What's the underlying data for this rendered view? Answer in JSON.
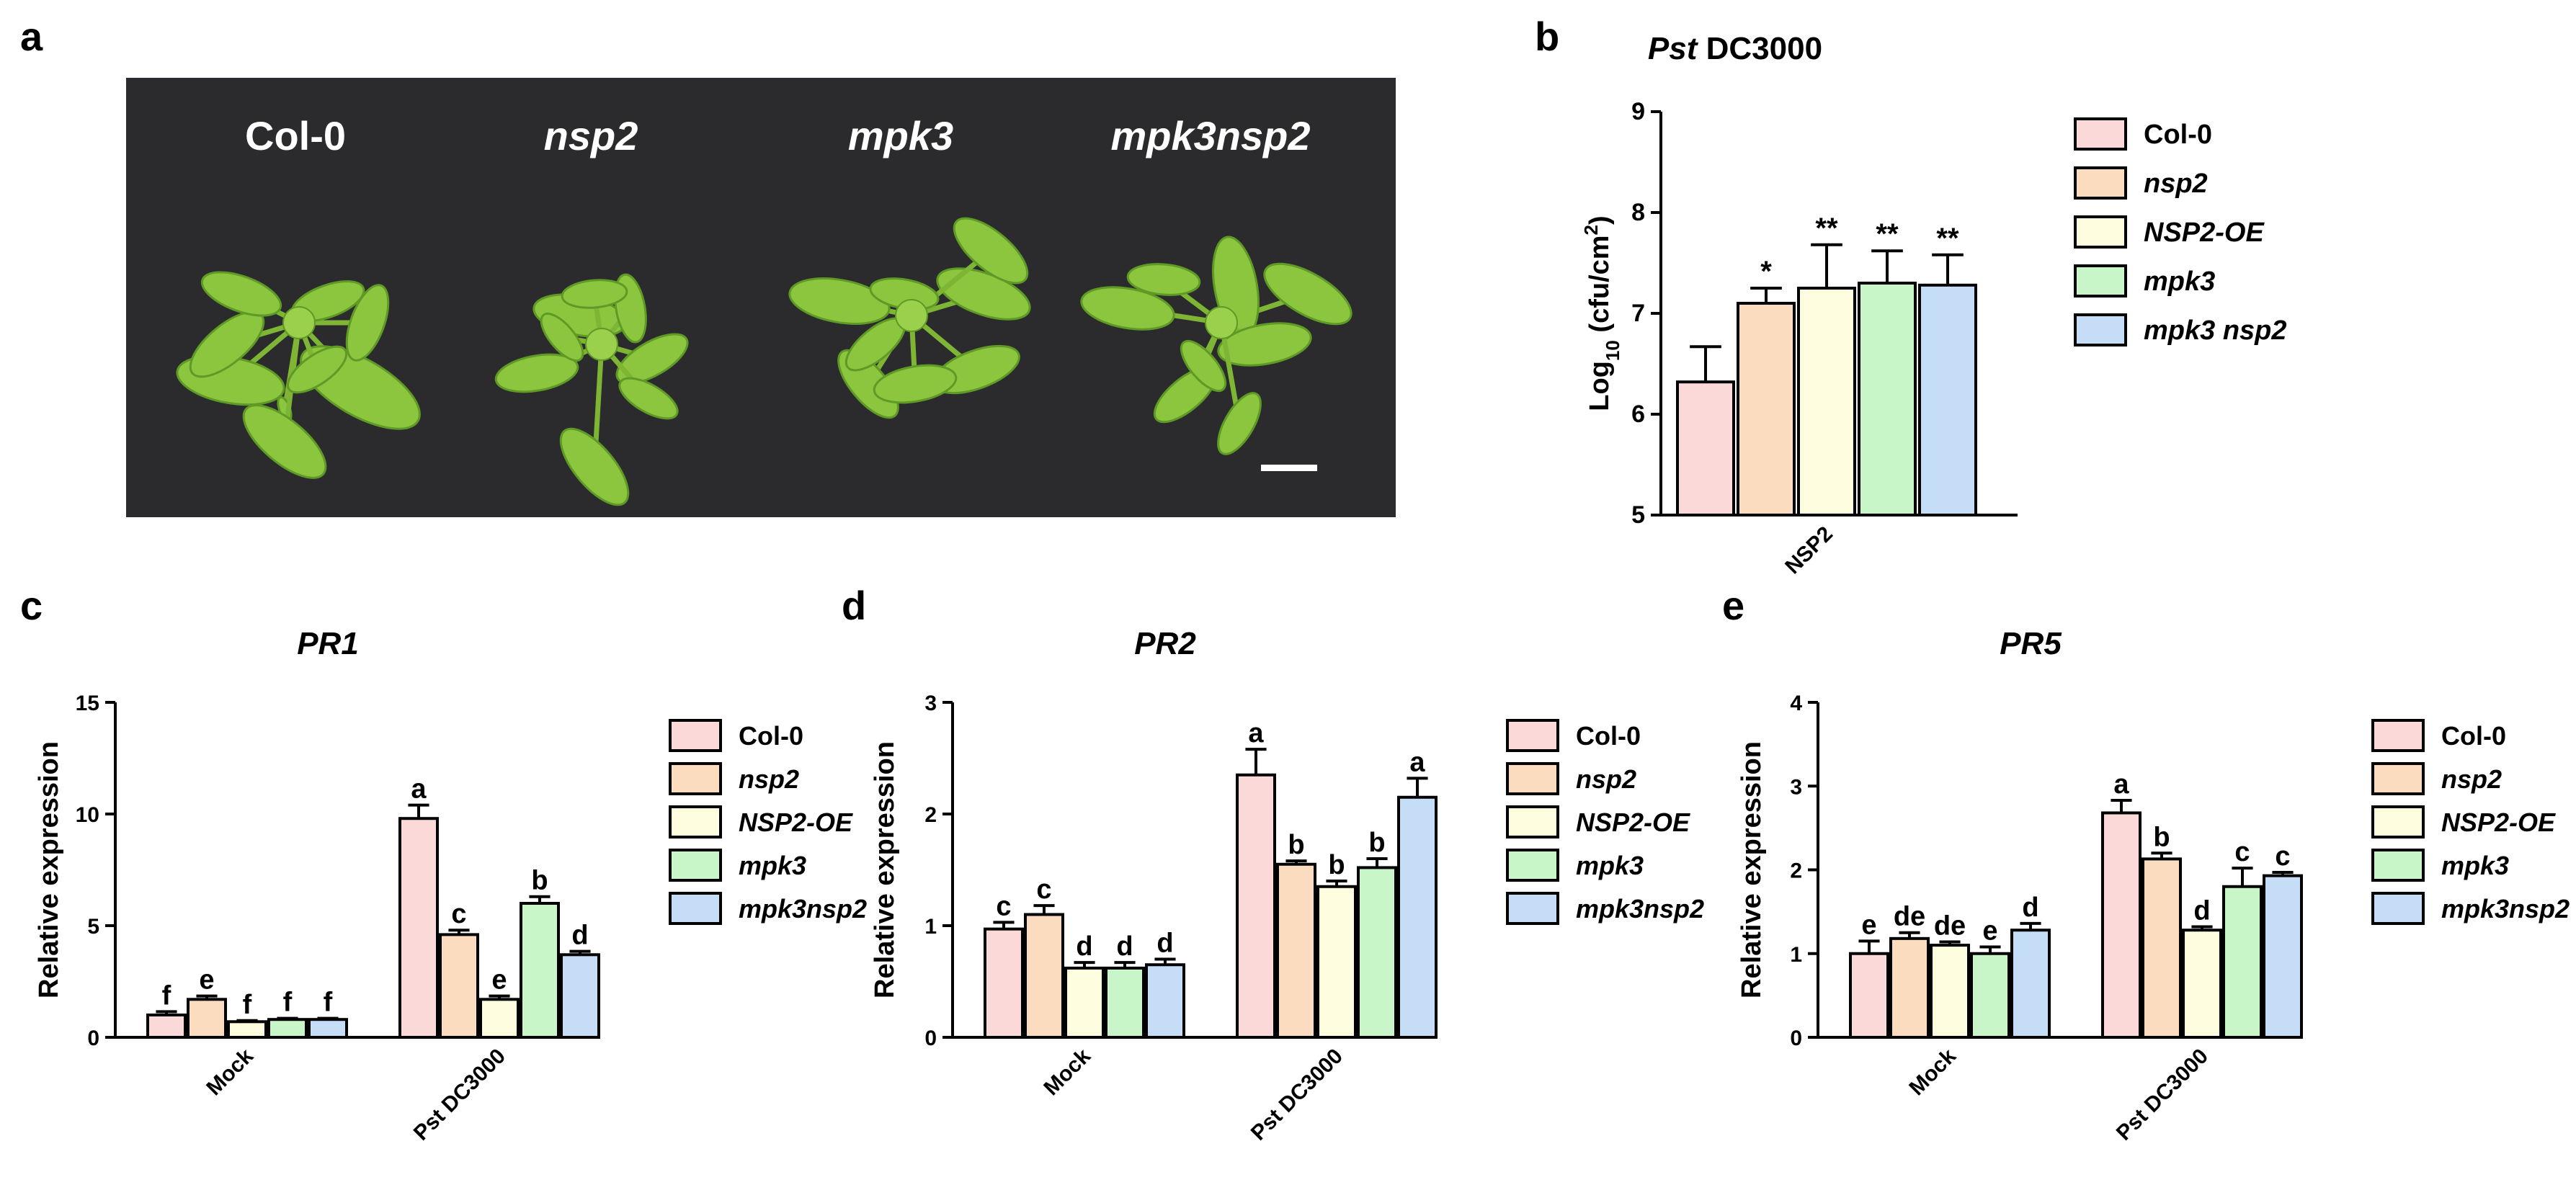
{
  "figure": {
    "panel_letters": [
      "a",
      "b",
      "c",
      "d",
      "e"
    ]
  },
  "photo": {
    "labels": [
      "Col-0",
      "nsp2",
      "mpk3",
      "mpk3nsp2"
    ],
    "italic": [
      false,
      true,
      true,
      true
    ]
  },
  "colors": {
    "fill": [
      "#fcd9d9",
      "#fcdcbf",
      "#fefde0",
      "#c9f6c9",
      "#c6ddf7"
    ],
    "leaf": "#8cc63f",
    "leaf_dark": "#5e9a25",
    "background": "#2b2b2d"
  },
  "chart_data": [
    {
      "id": "b",
      "type": "bar",
      "title": "Pst DC3000",
      "title_parts": [
        {
          "text": "Pst",
          "italic": true
        },
        {
          "text": " DC3000",
          "italic": false
        }
      ],
      "ylabel": "Log10 (cfu/cm2)",
      "ylabel_parts": [
        {
          "text": "Log",
          "sub": false
        },
        {
          "text": "10",
          "sub": true
        },
        {
          "text": " (cfu/cm",
          "sub": false
        },
        {
          "text": "2",
          "sup": true
        },
        {
          "text": ")",
          "sub": false
        }
      ],
      "ylim": [
        5,
        9
      ],
      "yticks": [
        "5",
        "6",
        "7",
        "8",
        "9"
      ],
      "categories": [
        "NSP2"
      ],
      "series": [
        {
          "name": "Col-0",
          "italic": false,
          "values": [
            6.32
          ],
          "errors": [
            0.35
          ],
          "labels": [
            ""
          ]
        },
        {
          "name": "nsp2",
          "italic": true,
          "values": [
            7.1
          ],
          "errors": [
            0.15
          ],
          "labels": [
            "*"
          ]
        },
        {
          "name": "NSP2-OE",
          "italic": true,
          "values": [
            7.25
          ],
          "errors": [
            0.43
          ],
          "labels": [
            "**"
          ]
        },
        {
          "name": "mpk3",
          "italic": true,
          "values": [
            7.3
          ],
          "errors": [
            0.32
          ],
          "labels": [
            "**"
          ]
        },
        {
          "name": "mpk3 nsp2",
          "italic": true,
          "values": [
            7.28
          ],
          "errors": [
            0.3
          ],
          "labels": [
            "**"
          ]
        }
      ]
    },
    {
      "id": "c",
      "type": "bar",
      "title": "PR1",
      "ylabel": "Relative expression",
      "ylim": [
        0,
        15
      ],
      "yticks": [
        "0",
        "5",
        "10",
        "15"
      ],
      "categories": [
        "Mock",
        "Pst DC3000"
      ],
      "series": [
        {
          "name": "Col-0",
          "italic": false,
          "values": [
            1.0,
            9.8
          ],
          "errors": [
            0.15,
            0.6
          ],
          "labels": [
            "f",
            "a"
          ]
        },
        {
          "name": "nsp2",
          "italic": true,
          "values": [
            1.7,
            4.6
          ],
          "errors": [
            0.15,
            0.2
          ],
          "labels": [
            "e",
            "c"
          ]
        },
        {
          "name": "NSP2-OE",
          "italic": true,
          "values": [
            0.7,
            1.7
          ],
          "errors": [
            0.05,
            0.15
          ],
          "labels": [
            "f",
            "e"
          ]
        },
        {
          "name": "mpk3",
          "italic": true,
          "values": [
            0.8,
            6.0
          ],
          "errors": [
            0.05,
            0.3
          ],
          "labels": [
            "f",
            "b"
          ]
        },
        {
          "name": "mpk3nsp2",
          "italic": true,
          "values": [
            0.8,
            3.7
          ],
          "errors": [
            0.05,
            0.15
          ],
          "labels": [
            "f",
            "d"
          ]
        }
      ]
    },
    {
      "id": "d",
      "type": "bar",
      "title": "PR2",
      "ylabel": "Relative expression",
      "ylim": [
        0,
        3
      ],
      "yticks": [
        "0",
        "1",
        "2",
        "3"
      ],
      "categories": [
        "Mock",
        "Pst DC3000"
      ],
      "series": [
        {
          "name": "Col-0",
          "italic": false,
          "values": [
            0.97,
            2.35
          ],
          "errors": [
            0.06,
            0.23
          ],
          "labels": [
            "c",
            "a"
          ]
        },
        {
          "name": "nsp2",
          "italic": true,
          "values": [
            1.1,
            1.55
          ],
          "errors": [
            0.08,
            0.03
          ],
          "labels": [
            "c",
            "b"
          ]
        },
        {
          "name": "NSP2-OE",
          "italic": true,
          "values": [
            0.62,
            1.35
          ],
          "errors": [
            0.05,
            0.05
          ],
          "labels": [
            "d",
            "b"
          ]
        },
        {
          "name": "mpk3",
          "italic": true,
          "values": [
            0.62,
            1.52
          ],
          "errors": [
            0.05,
            0.08
          ],
          "labels": [
            "d",
            "b"
          ]
        },
        {
          "name": "mpk3nsp2",
          "italic": true,
          "values": [
            0.65,
            2.15
          ],
          "errors": [
            0.05,
            0.17
          ],
          "labels": [
            "d",
            "a"
          ]
        }
      ]
    },
    {
      "id": "e",
      "type": "bar",
      "title": "PR5",
      "ylabel": "Relative expression",
      "ylim": [
        0,
        4
      ],
      "yticks": [
        "0",
        "1",
        "2",
        "3",
        "4"
      ],
      "categories": [
        "Mock",
        "Pst DC3000"
      ],
      "series": [
        {
          "name": "Col-0",
          "italic": false,
          "values": [
            1.0,
            2.68
          ],
          "errors": [
            0.15,
            0.15
          ],
          "labels": [
            "e",
            "a"
          ]
        },
        {
          "name": "nsp2",
          "italic": true,
          "values": [
            1.18,
            2.13
          ],
          "errors": [
            0.07,
            0.07
          ],
          "labels": [
            "de",
            "b"
          ]
        },
        {
          "name": "NSP2-OE",
          "italic": true,
          "values": [
            1.1,
            1.28
          ],
          "errors": [
            0.04,
            0.04
          ],
          "labels": [
            "de",
            "d"
          ]
        },
        {
          "name": "mpk3",
          "italic": true,
          "values": [
            1.0,
            1.8
          ],
          "errors": [
            0.08,
            0.22
          ],
          "labels": [
            "e",
            "c"
          ]
        },
        {
          "name": "mpk3nsp2",
          "italic": true,
          "values": [
            1.28,
            1.93
          ],
          "errors": [
            0.08,
            0.04
          ],
          "labels": [
            "d",
            "c"
          ]
        }
      ]
    }
  ]
}
